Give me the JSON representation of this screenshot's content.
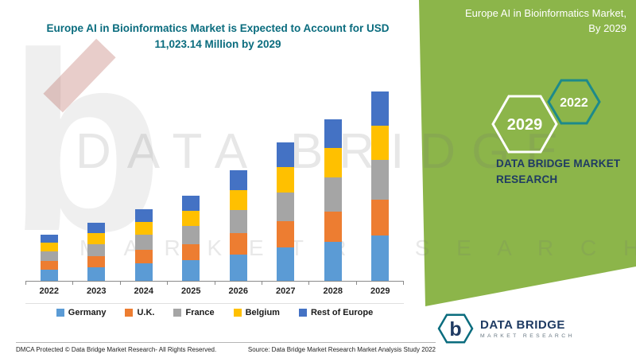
{
  "panel": {
    "title_line1": "Europe AI in Bioinformatics Market,",
    "title_line2": "By 2029",
    "hexagons": [
      {
        "label": "2029"
      },
      {
        "label": "2022"
      }
    ],
    "brand": "DATA BRIDGE MARKET RESEARCH",
    "colors": {
      "green": "#8CB54A",
      "navy": "#1F3B63",
      "teal": "#0A6C7E"
    }
  },
  "chart_data": {
    "type": "bar",
    "stacked": true,
    "title_line1": "Europe AI in Bioinformatics Market is Expected to Account for USD",
    "title_line2": "11,023.14 Million by 2029",
    "categories": [
      "2022",
      "2023",
      "2024",
      "2025",
      "2026",
      "2027",
      "2028",
      "2029"
    ],
    "series": [
      {
        "name": "Germany",
        "color": "#5B9BD5",
        "values": [
          645,
          809,
          1006,
          1192,
          1552,
          1935,
          2263,
          2646
        ]
      },
      {
        "name": "U.K.",
        "color": "#ED7D31",
        "values": [
          511,
          640,
          796,
          943,
          1229,
          1532,
          1792,
          2094
        ]
      },
      {
        "name": "France",
        "color": "#A5A5A5",
        "values": [
          564,
          708,
          880,
          1043,
          1358,
          1693,
          1980,
          2315
        ]
      },
      {
        "name": "Belgium",
        "color": "#FFC000",
        "values": [
          484,
          607,
          754,
          894,
          1164,
          1451,
          1697,
          1984
        ]
      },
      {
        "name": "Rest of Europe",
        "color": "#4472C4",
        "values": [
          484,
          607,
          755,
          893,
          1165,
          1451,
          1697,
          1984
        ]
      }
    ],
    "totals": [
      2688,
      3371,
      4191,
      4965,
      6468,
      8062,
      9429,
      11023.14
    ],
    "unit": "USD Million",
    "ylim": [
      0,
      11500
    ],
    "grid": false,
    "legend_position": "bottom"
  },
  "watermark": {
    "letter": "b",
    "line1": "DATA BRIDGE",
    "line2": "M A R K E T   R E S E A R C H"
  },
  "logo": {
    "letter": "b",
    "name_line1": "DATA BRIDGE",
    "name_line2": "MARKET RESEARCH"
  },
  "footer": {
    "dmca": "DMCA Protected © Data Bridge Market Research- All Rights Reserved.",
    "source": "Source: Data Bridge Market Research Market Analysis Study 2022"
  }
}
